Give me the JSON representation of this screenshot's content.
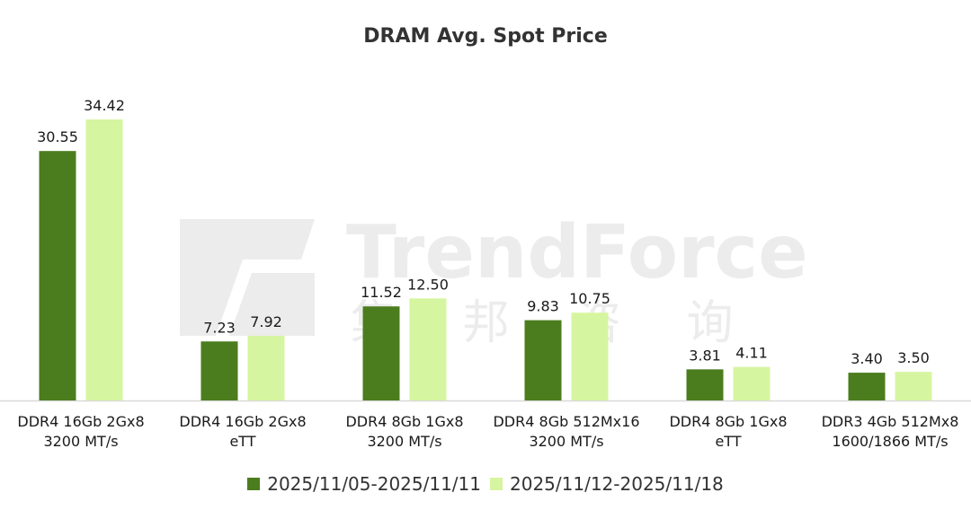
{
  "colors": {
    "series1": "#4b7d1e",
    "series2": "#d6f5a0",
    "axis": "#d9d9d9",
    "watermark": "#e6e6e6"
  },
  "watermark": {
    "text": "TrendForce",
    "subtext": "集 邦 咨 询"
  },
  "chart_data": {
    "type": "bar",
    "title": "DRAM Avg. Spot Price",
    "categories": [
      [
        "DDR4 16Gb 2Gx8",
        "3200 MT/s"
      ],
      [
        "DDR4 16Gb 2Gx8",
        "eTT"
      ],
      [
        "DDR4 8Gb 1Gx8",
        "3200 MT/s"
      ],
      [
        "DDR4 8Gb 512Mx16",
        "3200 MT/s"
      ],
      [
        "DDR4 8Gb 1Gx8",
        "eTT"
      ],
      [
        "DDR3 4Gb 512Mx8",
        "1600/1866 MT/s"
      ]
    ],
    "series": [
      {
        "name": "2025/11/05-2025/11/11",
        "values": [
          30.55,
          7.23,
          11.52,
          9.83,
          3.81,
          3.4
        ],
        "labels": [
          "30.55",
          "7.23",
          "11.52",
          "9.83",
          "3.81",
          "3.40"
        ]
      },
      {
        "name": "2025/11/12-2025/11/18",
        "values": [
          34.42,
          7.92,
          12.5,
          10.75,
          4.11,
          3.5
        ],
        "labels": [
          "34.42",
          "7.92",
          "12.50",
          "10.75",
          "4.11",
          "3.50"
        ]
      }
    ],
    "ylim": [
      0,
      34.42
    ],
    "grid": false,
    "legend": "bottom"
  }
}
